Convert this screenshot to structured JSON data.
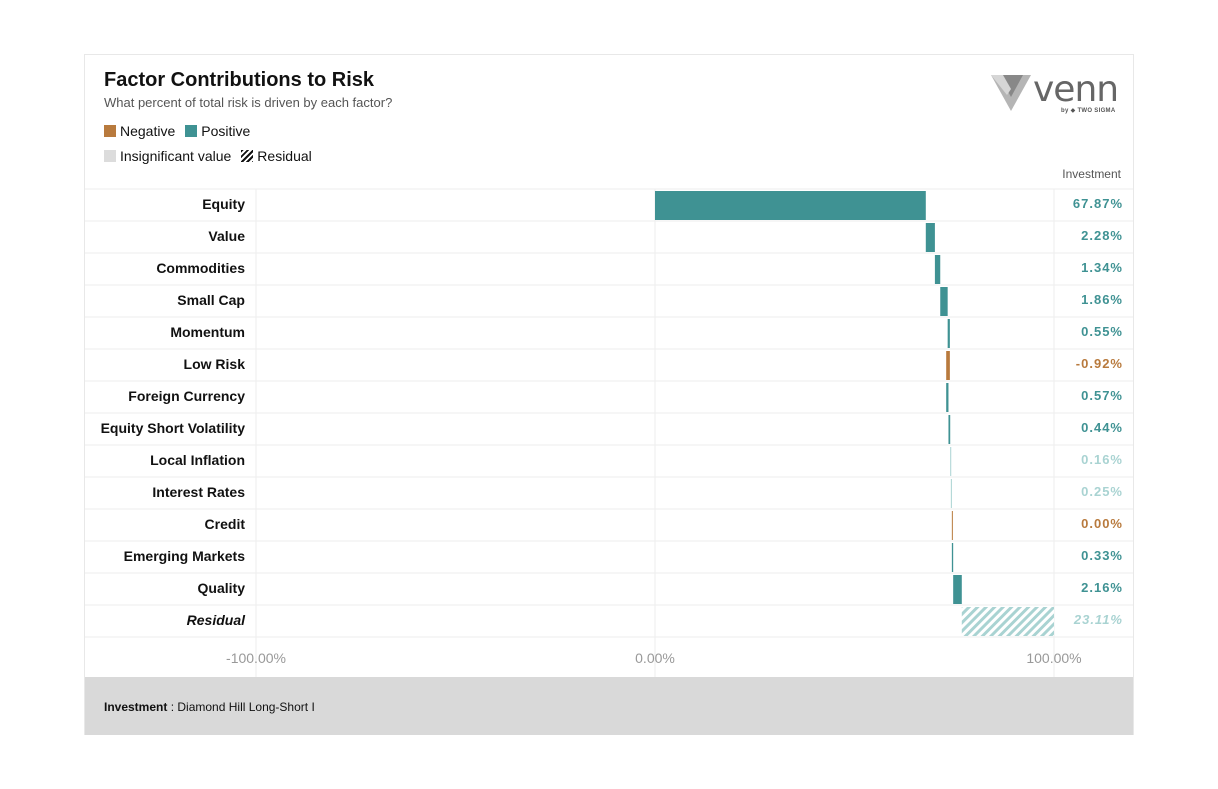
{
  "title": "Factor Contributions to Risk",
  "subtitle": "What percent of total risk is driven by each factor?",
  "legend": {
    "negative": "Negative",
    "positive": "Positive",
    "insignificant": "Insignificant value",
    "residual": "Residual"
  },
  "logo": {
    "word": "venn",
    "byline": "by ◆ TWO SIGMA"
  },
  "column_header": "Investment",
  "footer": {
    "label": "Investment",
    "separator": " : ",
    "value": "Diamond Hill Long-Short I"
  },
  "colors": {
    "positive": "#3f9293",
    "negative": "#b87a3d",
    "insignificant_positive": "#a9d3d2",
    "residual": "#a9d3d2",
    "grid": "#eeeeee"
  },
  "chart_data": {
    "type": "bar",
    "orientation": "horizontal",
    "xlim": [
      -100,
      100
    ],
    "x_ticks": [
      "-100.00%",
      "0.00%",
      "100.00%"
    ],
    "categories": [
      "Equity",
      "Value",
      "Commodities",
      "Small Cap",
      "Momentum",
      "Low Risk",
      "Foreign Currency",
      "Equity Short Volatility",
      "Local Inflation",
      "Interest Rates",
      "Credit",
      "Emerging Markets",
      "Quality",
      "Residual"
    ],
    "series": [
      {
        "values": [
          67.87,
          2.28,
          1.34,
          1.86,
          0.55,
          -0.92,
          0.57,
          0.44,
          0.16,
          0.25,
          0.0,
          0.33,
          2.16,
          23.11
        ],
        "labels": [
          "67.87%",
          "2.28%",
          "1.34%",
          "1.86%",
          "0.55%",
          "-0.92%",
          "0.57%",
          "0.44%",
          "0.16%",
          "0.25%",
          "0.00%",
          "0.33%",
          "2.16%",
          "23.11%"
        ],
        "status": [
          "positive",
          "positive",
          "positive",
          "positive",
          "positive",
          "negative",
          "positive",
          "positive",
          "insignificant",
          "insignificant",
          "negative",
          "positive",
          "positive",
          "residual"
        ]
      }
    ],
    "stacked_waterfall": true
  }
}
